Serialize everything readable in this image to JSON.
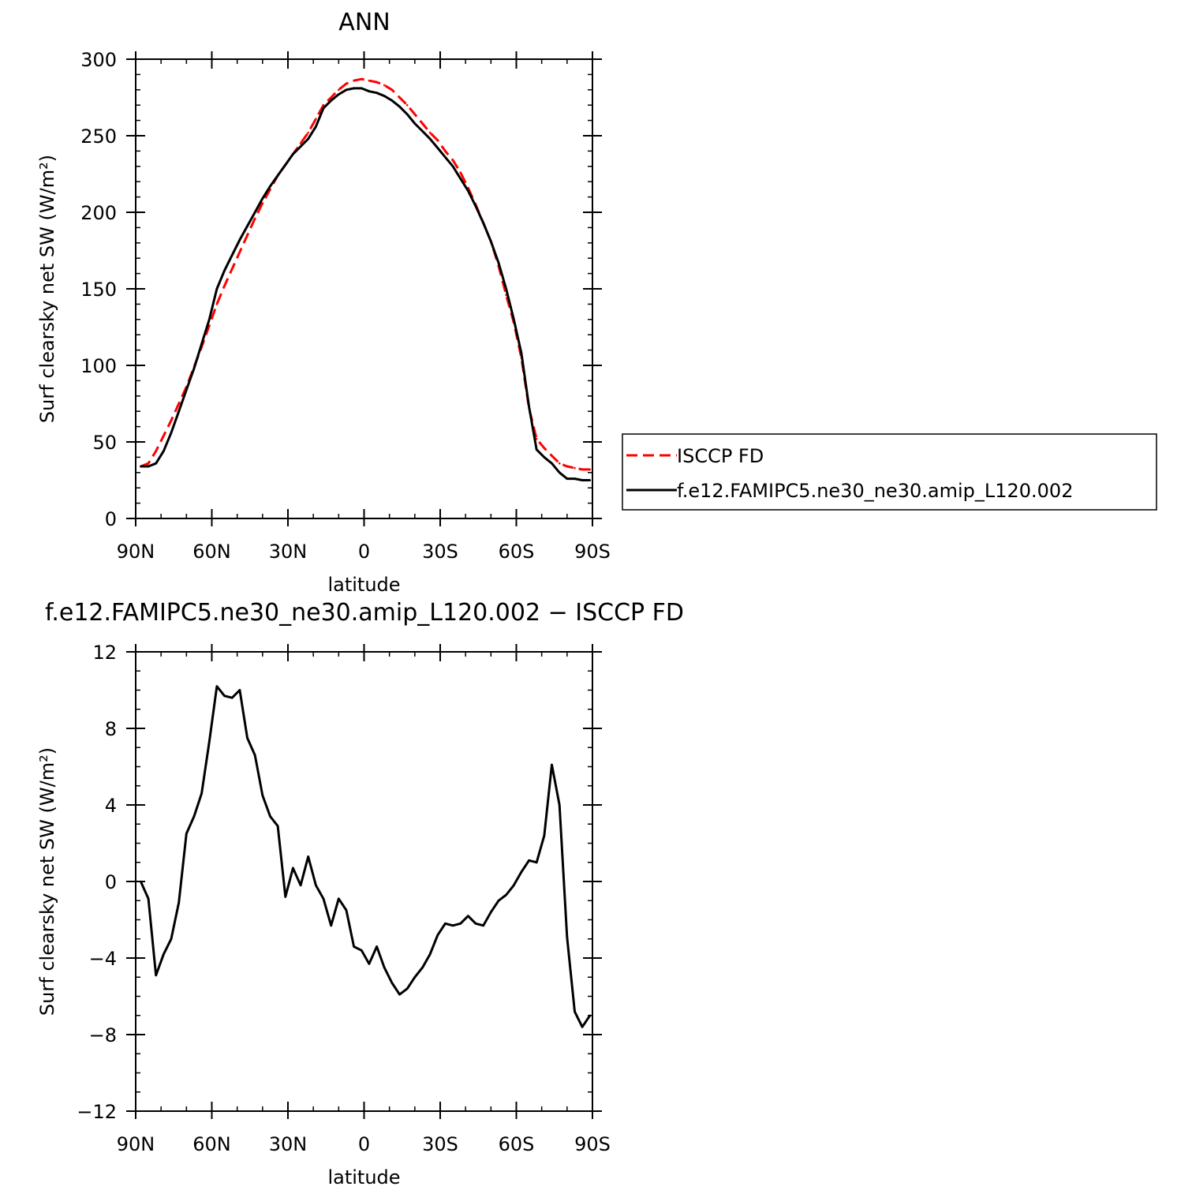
{
  "chart_data": [
    {
      "type": "line",
      "title": "ANN",
      "xlabel": "latitude",
      "ylabel": "Surf clearsky net SW (W/m²)",
      "xlim": [
        -90,
        90
      ],
      "ylim": [
        0,
        300
      ],
      "x_ticks": [
        {
          "value": -90,
          "label": "90N"
        },
        {
          "value": -60,
          "label": "60N"
        },
        {
          "value": -30,
          "label": "30N"
        },
        {
          "value": 0,
          "label": "0"
        },
        {
          "value": 30,
          "label": "30S"
        },
        {
          "value": 60,
          "label": "60S"
        },
        {
          "value": 90,
          "label": "90S"
        }
      ],
      "y_ticks": [
        {
          "value": 0,
          "label": "0"
        },
        {
          "value": 50,
          "label": "50"
        },
        {
          "value": 100,
          "label": "100"
        },
        {
          "value": 150,
          "label": "150"
        },
        {
          "value": 200,
          "label": "200"
        },
        {
          "value": 250,
          "label": "250"
        },
        {
          "value": 300,
          "label": "300"
        }
      ],
      "grid": false,
      "legend_position": "right",
      "series": [
        {
          "name": "ISCCP FD",
          "color": "#ff0000",
          "dash": "dashed",
          "x": [
            -88,
            -85,
            -82,
            -79,
            -76,
            -73,
            -70,
            -67,
            -64,
            -61,
            -58,
            -55,
            -52,
            -49,
            -46,
            -43,
            -40,
            -37,
            -34,
            -31,
            -28,
            -25,
            -22,
            -19,
            -16,
            -13,
            -10,
            -7,
            -4,
            -1,
            2,
            5,
            8,
            11,
            14,
            17,
            20,
            23,
            26,
            29,
            32,
            35,
            38,
            41,
            44,
            47,
            50,
            53,
            56,
            59,
            62,
            65,
            68,
            71,
            74,
            77,
            80,
            83,
            86,
            89
          ],
          "y": [
            34,
            36,
            44,
            54,
            64,
            75,
            86,
            99,
            112,
            126,
            140,
            152,
            163,
            174,
            185,
            196,
            206,
            215,
            224,
            231,
            238,
            245,
            252,
            261,
            270,
            275,
            280,
            284,
            286,
            287,
            286,
            285,
            283,
            280,
            275,
            270,
            264,
            258,
            252,
            247,
            240,
            234,
            226,
            216,
            205,
            193,
            181,
            165,
            146,
            128,
            105,
            72,
            52,
            46,
            41,
            36,
            34,
            33,
            32,
            32
          ]
        },
        {
          "name": "f.e12.FAMIPC5.ne30_ne30.amip_L120.002",
          "color": "#000000",
          "dash": "solid",
          "x": [
            -88,
            -85,
            -82,
            -79,
            -76,
            -73,
            -70,
            -67,
            -64,
            -61,
            -58,
            -55,
            -52,
            -49,
            -46,
            -43,
            -40,
            -37,
            -34,
            -31,
            -28,
            -25,
            -22,
            -19,
            -16,
            -13,
            -10,
            -7,
            -4,
            -1,
            2,
            5,
            8,
            11,
            14,
            17,
            20,
            23,
            26,
            29,
            32,
            35,
            38,
            41,
            44,
            47,
            50,
            53,
            56,
            59,
            62,
            65,
            68,
            71,
            74,
            77,
            80,
            83,
            86,
            89
          ],
          "y": [
            34,
            34,
            36,
            44,
            56,
            70,
            84,
            98,
            114,
            130,
            150,
            162,
            172,
            182,
            191,
            200,
            209,
            217,
            224,
            231,
            238,
            243,
            248,
            256,
            268,
            273,
            277,
            280,
            281,
            281,
            279,
            278,
            276,
            273,
            269,
            264,
            258,
            253,
            248,
            242,
            236,
            230,
            222,
            214,
            204,
            193,
            181,
            167,
            150,
            130,
            108,
            73,
            45,
            40,
            36,
            30,
            26,
            26,
            25,
            25
          ]
        }
      ]
    },
    {
      "type": "line",
      "title": "f.e12.FAMIPC5.ne30_ne30.amip_L120.002 − ISCCP FD",
      "xlabel": "latitude",
      "ylabel": "Surf clearsky net SW (W/m²)",
      "xlim": [
        -90,
        90
      ],
      "ylim": [
        -12,
        12
      ],
      "x_ticks": [
        {
          "value": -90,
          "label": "90N"
        },
        {
          "value": -60,
          "label": "60N"
        },
        {
          "value": -30,
          "label": "30N"
        },
        {
          "value": 0,
          "label": "0"
        },
        {
          "value": 30,
          "label": "30S"
        },
        {
          "value": 60,
          "label": "60S"
        },
        {
          "value": 90,
          "label": "90S"
        }
      ],
      "y_ticks": [
        {
          "value": -12,
          "label": "−12"
        },
        {
          "value": -8,
          "label": "−8"
        },
        {
          "value": -4,
          "label": "−4"
        },
        {
          "value": 0,
          "label": "0"
        },
        {
          "value": 4,
          "label": "4"
        },
        {
          "value": 8,
          "label": "8"
        },
        {
          "value": 12,
          "label": "12"
        }
      ],
      "grid": false,
      "series": [
        {
          "color": "#000000",
          "dash": "solid",
          "x": [
            -88,
            -85,
            -82,
            -79,
            -76,
            -73,
            -70,
            -67,
            -64,
            -61,
            -58,
            -55,
            -52,
            -49,
            -46,
            -43,
            -40,
            -37,
            -34,
            -31,
            -28,
            -25,
            -22,
            -19,
            -16,
            -13,
            -10,
            -7,
            -4,
            -1,
            2,
            5,
            8,
            11,
            14,
            17,
            20,
            23,
            26,
            29,
            32,
            35,
            38,
            41,
            44,
            47,
            50,
            53,
            56,
            59,
            62,
            65,
            68,
            71,
            74,
            77,
            80,
            83,
            86,
            89
          ],
          "y": [
            0,
            -0.9,
            -4.9,
            -3.8,
            -3.0,
            -1.1,
            2.5,
            3.4,
            4.6,
            7.3,
            10.2,
            9.7,
            9.6,
            10.0,
            7.5,
            6.6,
            4.5,
            3.4,
            2.9,
            -0.8,
            0.7,
            -0.2,
            1.3,
            -0.2,
            -0.9,
            -2.3,
            -0.9,
            -1.5,
            -3.4,
            -3.6,
            -4.3,
            -3.4,
            -4.5,
            -5.3,
            -5.9,
            -5.6,
            -5.0,
            -4.5,
            -3.8,
            -2.8,
            -2.2,
            -2.3,
            -2.2,
            -1.8,
            -2.2,
            -2.3,
            -1.6,
            -1.0,
            -0.7,
            -0.2,
            0.5,
            1.1,
            1.0,
            2.4,
            6.1,
            4.0,
            -2.9,
            -6.8,
            -7.6,
            -7.0
          ]
        }
      ]
    }
  ]
}
